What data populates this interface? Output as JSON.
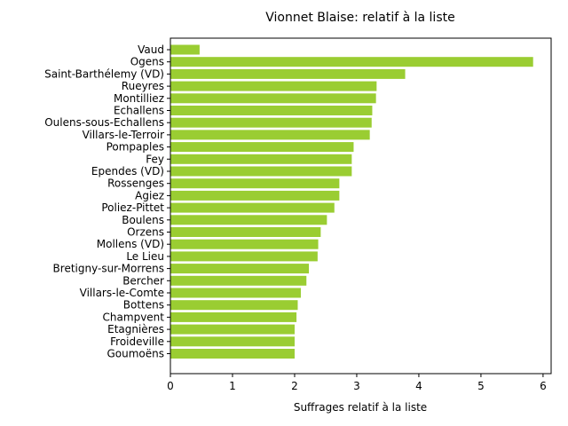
{
  "chart_data": {
    "type": "bar",
    "orientation": "horizontal",
    "title": "Vionnet Blaise: relatif à la liste",
    "xlabel": "Suffrages relatif à la liste",
    "ylabel": "",
    "xlim": [
      0,
      6.13
    ],
    "xticks": [
      0,
      1,
      2,
      3,
      4,
      5,
      6
    ],
    "grid": false,
    "bar_color": "#9acd32",
    "categories": [
      "Vaud",
      "Ogens",
      "Saint-Barthélemy (VD)",
      "Rueyres",
      "Montilliez",
      "Echallens",
      "Oulens-sous-Echallens",
      "Villars-le-Terroir",
      "Pompaples",
      "Fey",
      "Ependes (VD)",
      "Rossenges",
      "Agiez",
      "Poliez-Pittet",
      "Boulens",
      "Orzens",
      "Mollens (VD)",
      "Le Lieu",
      "Bretigny-sur-Morrens",
      "Bercher",
      "Villars-le-Comte",
      "Bottens",
      "Champvent",
      "Etagnières",
      "Froideville",
      "Goumoëns"
    ],
    "values": [
      0.47,
      5.84,
      3.78,
      3.32,
      3.31,
      3.25,
      3.24,
      3.21,
      2.95,
      2.92,
      2.92,
      2.72,
      2.72,
      2.64,
      2.52,
      2.42,
      2.38,
      2.37,
      2.23,
      2.19,
      2.1,
      2.05,
      2.03,
      2.0,
      2.0,
      2.0
    ]
  }
}
